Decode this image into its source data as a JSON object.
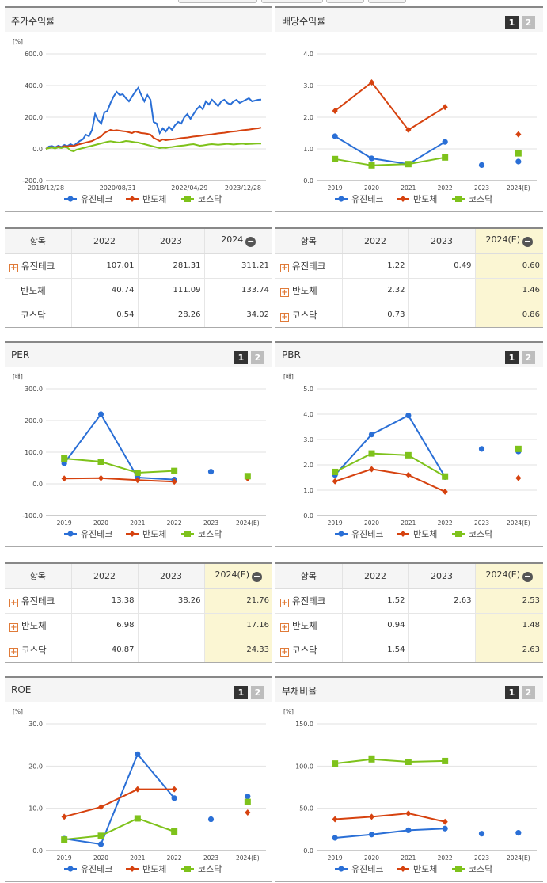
{
  "colors": {
    "series1": "#2a6fd6",
    "series2": "#d6420f",
    "series3": "#7ec21b"
  },
  "legend_names": [
    "유진테크",
    "반도체",
    "코스닥"
  ],
  "panels": [
    {
      "title": "주가수익률",
      "pager": [
        "",
        ""
      ],
      "chart_data": {
        "type": "line",
        "unit": "[%]",
        "ylim": [
          -200,
          600
        ],
        "yticks": [
          "600.0",
          "400.0",
          "200.0",
          "0.0",
          "-200.0"
        ],
        "xlabels": [
          "2018/12/28",
          "2020/08/31",
          "2022/04/29",
          "2023/12/28"
        ],
        "x": [
          0,
          4,
          8,
          12,
          16,
          20,
          24,
          28,
          32,
          36,
          40,
          44,
          48,
          52,
          56,
          60,
          64,
          68,
          72,
          76,
          80,
          84,
          88,
          92,
          96,
          100,
          104,
          108,
          112,
          116,
          120,
          124,
          128,
          132,
          136,
          140,
          144,
          148,
          152,
          156,
          160,
          164,
          168,
          172,
          176,
          180,
          184,
          188,
          192,
          196,
          200,
          204,
          208,
          212,
          216,
          220,
          224,
          228,
          232,
          236,
          240,
          244,
          248,
          252,
          256,
          260,
          264,
          268,
          272,
          276,
          280
        ],
        "series": [
          {
            "name": "유진테크",
            "markers": false,
            "values": [
              0,
              15,
              18,
              10,
              20,
              12,
              25,
              18,
              30,
              20,
              35,
              50,
              60,
              90,
              80,
              120,
              220,
              180,
              160,
              230,
              240,
              290,
              330,
              360,
              340,
              345,
              320,
              300,
              330,
              360,
              385,
              340,
              300,
              340,
              310,
              170,
              160,
              100,
              130,
              110,
              140,
              120,
              150,
              170,
              160,
              200,
              220,
              190,
              220,
              250,
              270,
              250,
              300,
              280,
              310,
              290,
              270,
              300,
              310,
              290,
              280,
              300,
              310,
              290,
              300,
              310,
              320,
              300,
              305,
              310,
              311
            ]
          },
          {
            "name": "반도체",
            "markers": false,
            "values": [
              0,
              10,
              12,
              8,
              15,
              10,
              18,
              15,
              20,
              18,
              25,
              30,
              35,
              40,
              45,
              50,
              60,
              70,
              80,
              100,
              110,
              120,
              115,
              118,
              115,
              112,
              110,
              105,
              100,
              110,
              105,
              100,
              98,
              95,
              90,
              70,
              60,
              50,
              60,
              55,
              58,
              60,
              62,
              65,
              68,
              70,
              72,
              75,
              78,
              80,
              82,
              85,
              88,
              90,
              92,
              95,
              98,
              100,
              102,
              105,
              108,
              110,
              112,
              115,
              118,
              120,
              122,
              125,
              128,
              130,
              134
            ]
          },
          {
            "name": "코스닥",
            "markers": false,
            "values": [
              0,
              5,
              8,
              3,
              10,
              5,
              12,
              8,
              -10,
              -15,
              -5,
              0,
              5,
              10,
              15,
              20,
              25,
              30,
              35,
              40,
              45,
              48,
              45,
              42,
              40,
              45,
              50,
              48,
              45,
              42,
              40,
              35,
              30,
              25,
              20,
              15,
              10,
              5,
              8,
              6,
              10,
              12,
              15,
              18,
              20,
              22,
              25,
              28,
              30,
              25,
              20,
              22,
              25,
              28,
              30,
              28,
              26,
              28,
              30,
              32,
              30,
              28,
              30,
              32,
              33,
              30,
              31,
              32,
              33,
              34,
              34
            ]
          }
        ]
      }
    },
    {
      "title": "배당수익률",
      "pager": [
        "1",
        "2"
      ],
      "chart_data": {
        "type": "line",
        "unit": "",
        "ylim": [
          0,
          4
        ],
        "yticks": [
          "4.0",
          "3.0",
          "2.0",
          "1.0",
          "0.0"
        ],
        "xlabels": [
          "2019",
          "2020",
          "2021",
          "2022",
          "2023",
          "2024(E)"
        ],
        "series": [
          {
            "name": "유진테크",
            "markers": true,
            "values": [
              1.4,
              0.7,
              0.52,
              1.22,
              0.49,
              0.6
            ]
          },
          {
            "name": "반도체",
            "markers": true,
            "values": [
              2.2,
              3.1,
              1.6,
              2.32,
              null,
              1.46
            ]
          },
          {
            "name": "코스닥",
            "markers": true,
            "values": [
              0.68,
              0.48,
              0.52,
              0.73,
              null,
              0.86
            ]
          }
        ]
      }
    },
    {
      "title": "PER",
      "pager": [
        "1",
        "2"
      ],
      "chart_data": {
        "type": "line",
        "unit": "[배]",
        "ylim": [
          -100,
          300
        ],
        "yticks": [
          "300.0",
          "200.0",
          "100.0",
          "0.0",
          "-100.0"
        ],
        "xlabels": [
          "2019",
          "2020",
          "2021",
          "2022",
          "2023",
          "2024(E)"
        ],
        "series": [
          {
            "name": "유진테크",
            "markers": true,
            "values": [
              65,
              220,
              20,
              13.38,
              38.26,
              21.76
            ]
          },
          {
            "name": "반도체",
            "markers": true,
            "values": [
              17,
              18,
              12,
              6.98,
              null,
              17.16
            ]
          },
          {
            "name": "코스닥",
            "markers": true,
            "values": [
              80,
              70,
              35,
              40.87,
              null,
              24.33
            ]
          }
        ]
      }
    },
    {
      "title": "PBR",
      "pager": [
        "1",
        "2"
      ],
      "chart_data": {
        "type": "line",
        "unit": "[배]",
        "ylim": [
          0,
          5
        ],
        "yticks": [
          "5.0",
          "4.0",
          "3.0",
          "2.0",
          "1.0",
          "0.0"
        ],
        "xlabels": [
          "2019",
          "2020",
          "2021",
          "2022",
          "2023",
          "2024(E)"
        ],
        "series": [
          {
            "name": "유진테크",
            "markers": true,
            "values": [
              1.6,
              3.2,
              3.95,
              1.52,
              2.63,
              2.53
            ]
          },
          {
            "name": "반도체",
            "markers": true,
            "values": [
              1.35,
              1.83,
              1.6,
              0.94,
              null,
              1.48
            ]
          },
          {
            "name": "코스닥",
            "markers": true,
            "values": [
              1.72,
              2.45,
              2.38,
              1.54,
              null,
              2.63
            ]
          }
        ]
      }
    },
    {
      "title": "ROE",
      "pager": [
        "1",
        "2"
      ],
      "chart_data": {
        "type": "line",
        "unit": "[%]",
        "ylim": [
          0,
          30
        ],
        "yticks": [
          "30.0",
          "20.0",
          "10.0",
          "0.0"
        ],
        "xlabels": [
          "2019",
          "2020",
          "2021",
          "2022",
          "2023",
          "2024(E)"
        ],
        "series": [
          {
            "name": "유진테크",
            "markers": true,
            "values": [
              2.8,
              1.5,
              22.8,
              12.4,
              7.4,
              12.8
            ]
          },
          {
            "name": "반도체",
            "markers": true,
            "values": [
              8.0,
              10.3,
              14.5,
              14.5,
              null,
              9.0
            ]
          },
          {
            "name": "코스닥",
            "markers": true,
            "values": [
              2.6,
              3.5,
              7.6,
              4.5,
              null,
              11.5
            ]
          }
        ]
      }
    },
    {
      "title": "부채비율",
      "pager": [
        "1",
        "2"
      ],
      "chart_data": {
        "type": "line",
        "unit": "[%]",
        "ylim": [
          0,
          150
        ],
        "yticks": [
          "150.0",
          "100.0",
          "50.0",
          "0.0"
        ],
        "xlabels": [
          "2019",
          "2020",
          "2021",
          "2022",
          "2023",
          "2024(E)"
        ],
        "series": [
          {
            "name": "유진테크",
            "markers": true,
            "values": [
              15,
              19,
              24,
              26,
              20,
              21
            ]
          },
          {
            "name": "반도체",
            "markers": true,
            "values": [
              37,
              40,
              44,
              34,
              null,
              null
            ]
          },
          {
            "name": "코스닥",
            "markers": true,
            "values": [
              103,
              108,
              105,
              106,
              null,
              null
            ]
          }
        ]
      }
    }
  ],
  "tables": [
    {
      "headers": [
        "항목",
        "2022",
        "2023",
        "2024"
      ],
      "highlight_last": false,
      "rows": [
        {
          "name": "유진테크",
          "plus": true,
          "values": [
            "107.01",
            "281.31",
            "311.21"
          ]
        },
        {
          "name": "반도체",
          "plus": false,
          "values": [
            "40.74",
            "111.09",
            "133.74"
          ]
        },
        {
          "name": "코스닥",
          "plus": false,
          "values": [
            "0.54",
            "28.26",
            "34.02"
          ]
        }
      ]
    },
    {
      "headers": [
        "항목",
        "2022",
        "2023",
        "2024(E)"
      ],
      "highlight_last": true,
      "rows": [
        {
          "name": "유진테크",
          "plus": true,
          "values": [
            "1.22",
            "0.49",
            "0.60"
          ]
        },
        {
          "name": "반도체",
          "plus": true,
          "values": [
            "2.32",
            "",
            "1.46"
          ]
        },
        {
          "name": "코스닥",
          "plus": true,
          "values": [
            "0.73",
            "",
            "0.86"
          ]
        }
      ]
    },
    {
      "headers": [
        "항목",
        "2022",
        "2023",
        "2024(E)"
      ],
      "highlight_last": true,
      "rows": [
        {
          "name": "유진테크",
          "plus": true,
          "values": [
            "13.38",
            "38.26",
            "21.76"
          ]
        },
        {
          "name": "반도체",
          "plus": true,
          "values": [
            "6.98",
            "",
            "17.16"
          ]
        },
        {
          "name": "코스닥",
          "plus": true,
          "values": [
            "40.87",
            "",
            "24.33"
          ]
        }
      ]
    },
    {
      "headers": [
        "항목",
        "2022",
        "2023",
        "2024(E)"
      ],
      "highlight_last": true,
      "rows": [
        {
          "name": "유진테크",
          "plus": true,
          "values": [
            "1.52",
            "2.63",
            "2.53"
          ]
        },
        {
          "name": "반도체",
          "plus": true,
          "values": [
            "0.94",
            "",
            "1.48"
          ]
        },
        {
          "name": "코스닥",
          "plus": true,
          "values": [
            "1.54",
            "",
            "2.63"
          ]
        }
      ]
    }
  ]
}
